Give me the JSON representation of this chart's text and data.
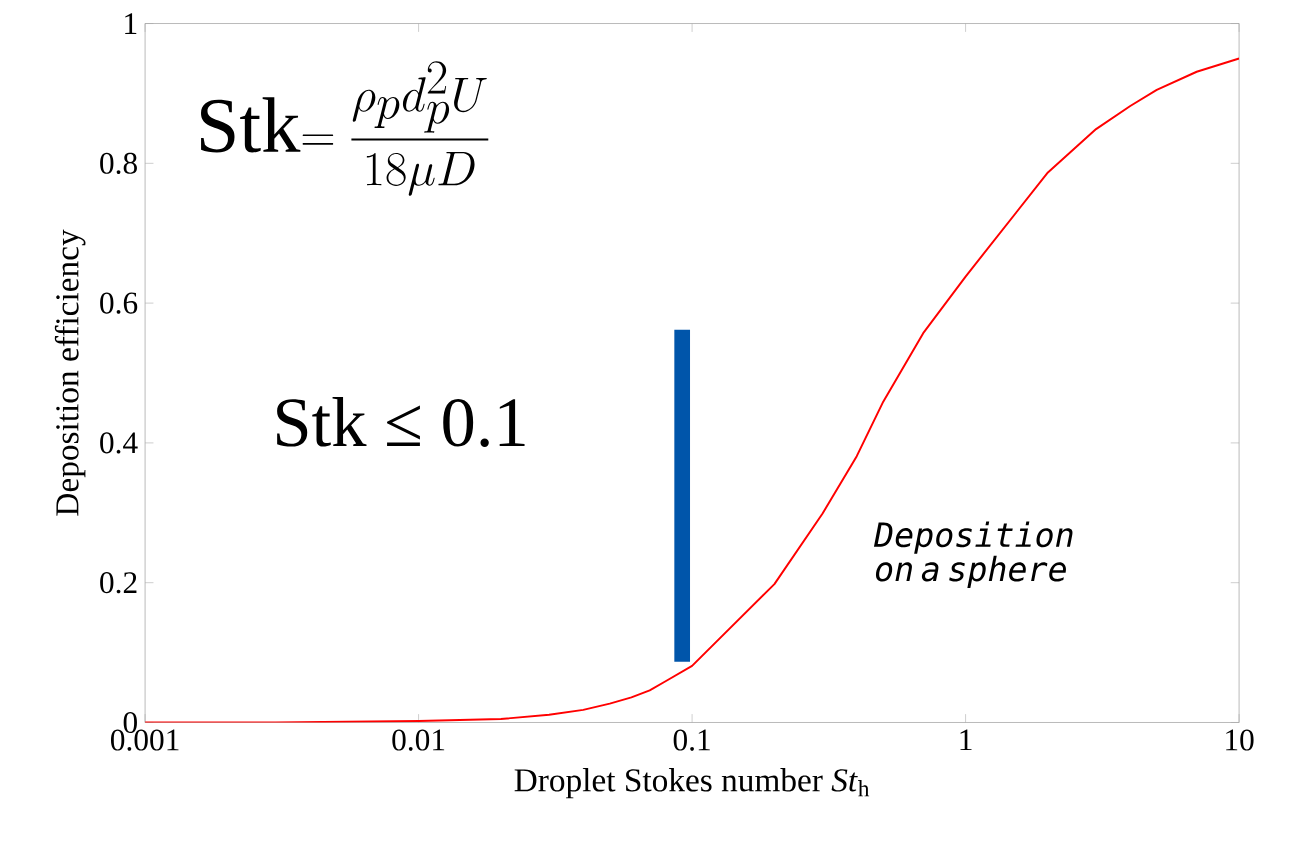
{
  "chart_data": {
    "type": "line",
    "xlabel": "Droplet Stokes number *St*$_{h}$",
    "ylabel": "Deposition efficiency",
    "log": "x",
    "xlim": [
      0.001,
      10
    ],
    "ylim": [
      0,
      1
    ],
    "xticks": [
      {
        "value": 0.001,
        "label": "0.001"
      },
      {
        "value": 0.01,
        "label": "0.01"
      },
      {
        "value": 0.1,
        "label": "0.1"
      },
      {
        "value": 1,
        "label": "1"
      },
      {
        "value": 10,
        "label": "10"
      }
    ],
    "yticks": [
      0,
      {
        "value": 0.2,
        "label": "0.2"
      },
      {
        "value": 0.4,
        "label": "0.4"
      },
      {
        "value": 0.6,
        "label": "0.6"
      },
      {
        "value": 0.8,
        "label": "0.8"
      },
      1
    ],
    "series": [
      {
        "color": "#ff0000",
        "x": [
          0.001,
          0.003,
          0.01,
          0.02,
          0.03,
          0.04,
          0.05,
          0.06,
          0.07,
          0.08,
          0.1,
          0.2,
          0.3,
          0.4,
          0.5,
          0.7,
          1,
          2,
          3,
          4,
          5,
          7,
          10
        ],
        "values": [
          0,
          0,
          0.002,
          0.005,
          0.011,
          0.018,
          0.027,
          0.036,
          0.046,
          0.059,
          0.081,
          0.198,
          0.299,
          0.381,
          0.459,
          0.557,
          0.638,
          0.787,
          0.849,
          0.882,
          0.905,
          0.931,
          0.95
        ]
      },
      {
        "color": "#0055aa",
        "x": [
          0.092,
          0.092
        ],
        "values": [
          0.087,
          0.562
        ]
      }
    ],
    "annotations": [
      "\\mathrm{Stk}{=}\\;\\dfrac{\\rho_p d_p^{2} U}{18\\mu D}",
      "Stk ≤ 0.1",
      "Deposition on a sphere"
    ]
  }
}
